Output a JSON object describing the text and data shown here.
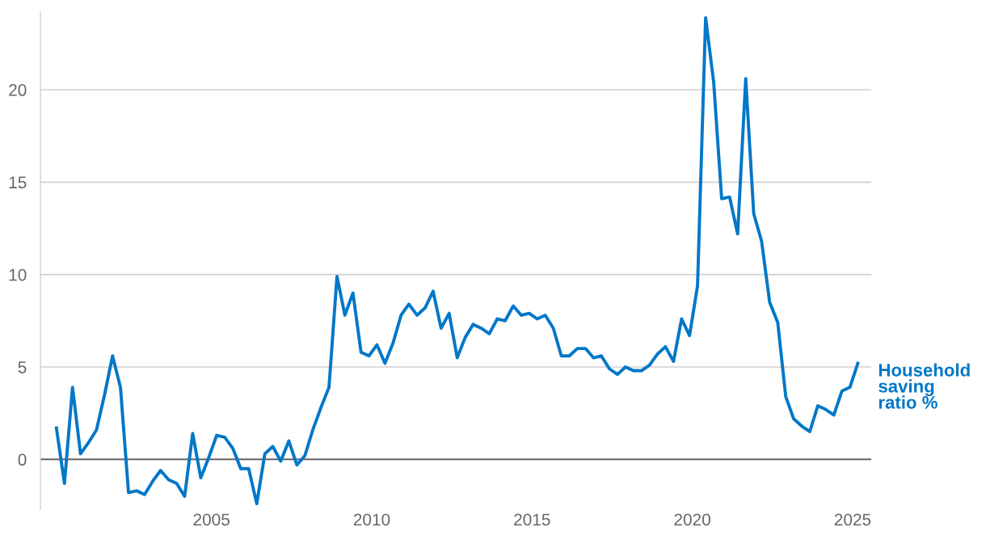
{
  "chart_data": {
    "type": "line",
    "x": [
      "2000-03",
      "2000-06",
      "2000-09",
      "2000-12",
      "2001-03",
      "2001-06",
      "2001-09",
      "2001-12",
      "2002-03",
      "2002-06",
      "2002-09",
      "2002-12",
      "2003-03",
      "2003-06",
      "2003-09",
      "2003-12",
      "2004-03",
      "2004-06",
      "2004-09",
      "2004-12",
      "2005-03",
      "2005-06",
      "2005-09",
      "2005-12",
      "2006-03",
      "2006-06",
      "2006-09",
      "2006-12",
      "2007-03",
      "2007-06",
      "2007-09",
      "2007-12",
      "2008-03",
      "2008-06",
      "2008-09",
      "2008-12",
      "2009-03",
      "2009-06",
      "2009-09",
      "2009-12",
      "2010-03",
      "2010-06",
      "2010-09",
      "2010-12",
      "2011-03",
      "2011-06",
      "2011-09",
      "2011-12",
      "2012-03",
      "2012-06",
      "2012-09",
      "2012-12",
      "2013-03",
      "2013-06",
      "2013-09",
      "2013-12",
      "2014-03",
      "2014-06",
      "2014-09",
      "2014-12",
      "2015-03",
      "2015-06",
      "2015-09",
      "2015-12",
      "2016-03",
      "2016-06",
      "2016-09",
      "2016-12",
      "2017-03",
      "2017-06",
      "2017-09",
      "2017-12",
      "2018-03",
      "2018-06",
      "2018-09",
      "2018-12",
      "2019-03",
      "2019-06",
      "2019-09",
      "2019-12",
      "2020-03",
      "2020-06",
      "2020-09",
      "2020-12",
      "2021-03",
      "2021-06",
      "2021-09",
      "2021-12",
      "2022-03",
      "2022-06",
      "2022-09",
      "2022-12",
      "2023-03",
      "2023-06",
      "2023-09",
      "2023-12",
      "2024-03",
      "2024-06",
      "2024-09",
      "2024-12",
      "2025-03"
    ],
    "series": [
      {
        "name": "Household saving ratio %",
        "color": "#0077c8",
        "values": [
          1.7,
          -1.3,
          3.9,
          0.3,
          0.9,
          1.6,
          3.5,
          5.6,
          3.9,
          -1.8,
          -1.7,
          -1.9,
          -1.2,
          -0.6,
          -1.1,
          -1.3,
          -2.0,
          1.4,
          -1.0,
          0.1,
          1.3,
          1.2,
          0.6,
          -0.5,
          -0.5,
          -2.4,
          0.3,
          0.7,
          -0.1,
          1.0,
          -0.3,
          0.2,
          1.6,
          2.8,
          3.9,
          9.9,
          7.8,
          9.0,
          5.8,
          5.6,
          6.2,
          5.2,
          6.3,
          7.8,
          8.4,
          7.8,
          8.2,
          9.1,
          7.1,
          7.9,
          5.5,
          6.6,
          7.3,
          7.1,
          6.8,
          7.6,
          7.5,
          8.3,
          7.8,
          7.9,
          7.6,
          7.8,
          7.1,
          5.6,
          5.6,
          6.0,
          6.0,
          5.5,
          5.6,
          4.9,
          4.6,
          5.0,
          4.8,
          4.8,
          5.1,
          5.7,
          6.1,
          5.3,
          7.6,
          6.7,
          9.4,
          23.9,
          20.4,
          14.1,
          14.2,
          12.2,
          20.6,
          13.3,
          11.8,
          8.5,
          7.4,
          3.4,
          2.2,
          1.8,
          1.5,
          2.9,
          2.7,
          2.4,
          3.7,
          3.9,
          5.2
        ]
      }
    ],
    "xlim": [
      "1999-09",
      "2025-08"
    ],
    "xticks": [
      "2005",
      "2010",
      "2015",
      "2020",
      "2025"
    ],
    "ylim": [
      -2.7,
      24.2
    ],
    "yticks": [
      0,
      5,
      10,
      15,
      20
    ],
    "ref_lines": [
      {
        "axis": "y",
        "value": 0,
        "color": "#666666"
      }
    ],
    "grid": "y",
    "legend": false,
    "marker": "none",
    "line_style": "solid"
  }
}
